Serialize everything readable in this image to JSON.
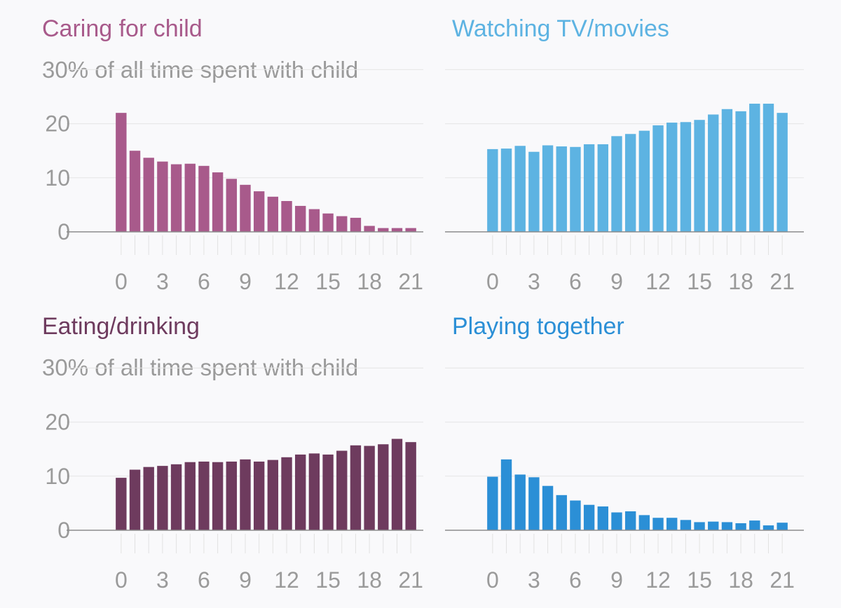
{
  "chart_data": [
    {
      "type": "bar",
      "title": "Caring for child",
      "subtitle": "30% of all time spent with child",
      "color": "#a85a8b",
      "x": [
        0,
        1,
        2,
        3,
        4,
        5,
        6,
        7,
        8,
        9,
        10,
        11,
        12,
        13,
        14,
        15,
        16,
        17,
        18,
        19,
        20,
        21
      ],
      "values": [
        22,
        15,
        13.7,
        13,
        12.5,
        12.6,
        12.2,
        11,
        9.8,
        8.7,
        7.5,
        6.5,
        5.7,
        4.8,
        4.2,
        3.4,
        2.9,
        2.6,
        1.1,
        0.7,
        0.7,
        0.7
      ],
      "xticks": [
        "0",
        "3",
        "6",
        "9",
        "12",
        "15",
        "18",
        "21"
      ],
      "yticks": [
        "0",
        "10",
        "20"
      ],
      "ylim": [
        0,
        30
      ]
    },
    {
      "type": "bar",
      "title": "Watching TV/movies",
      "subtitle": "",
      "color": "#5db3e2",
      "x": [
        0,
        1,
        2,
        3,
        4,
        5,
        6,
        7,
        8,
        9,
        10,
        11,
        12,
        13,
        14,
        15,
        16,
        17,
        18,
        19,
        20,
        21
      ],
      "values": [
        15.3,
        15.4,
        15.9,
        14.8,
        16,
        15.8,
        15.7,
        16.2,
        16.2,
        17.7,
        18.1,
        18.7,
        19.7,
        20.2,
        20.3,
        20.7,
        21.7,
        22.7,
        22.3,
        23.7,
        23.7,
        22
      ],
      "xticks": [
        "0",
        "3",
        "6",
        "9",
        "12",
        "15",
        "18",
        "21"
      ],
      "yticks": [],
      "ylim": [
        0,
        30
      ]
    },
    {
      "type": "bar",
      "title": "Eating/drinking",
      "subtitle": "30% of all time spent with child",
      "color": "#6e3b5e",
      "x": [
        0,
        1,
        2,
        3,
        4,
        5,
        6,
        7,
        8,
        9,
        10,
        11,
        12,
        13,
        14,
        15,
        16,
        17,
        18,
        19,
        20,
        21
      ],
      "values": [
        9.7,
        11.2,
        11.7,
        11.9,
        12.2,
        12.6,
        12.7,
        12.6,
        12.7,
        13.1,
        12.7,
        13,
        13.5,
        14,
        14.2,
        14,
        14.7,
        15.7,
        15.6,
        15.9,
        16.9,
        16.3
      ],
      "xticks": [
        "0",
        "3",
        "6",
        "9",
        "12",
        "15",
        "18",
        "21"
      ],
      "yticks": [
        "0",
        "10",
        "20"
      ],
      "ylim": [
        0,
        30
      ]
    },
    {
      "type": "bar",
      "title": "Playing together",
      "subtitle": "",
      "color": "#2b8fd6",
      "x": [
        0,
        1,
        2,
        3,
        4,
        5,
        6,
        7,
        8,
        9,
        10,
        11,
        12,
        13,
        14,
        15,
        16,
        17,
        18,
        19,
        20,
        21
      ],
      "values": [
        9.9,
        13.1,
        10.3,
        9.8,
        8.2,
        6.5,
        5.5,
        4.7,
        4.4,
        3.3,
        3.5,
        2.8,
        2.3,
        2.3,
        1.9,
        1.5,
        1.6,
        1.5,
        1.3,
        1.8,
        0.9,
        1.4
      ],
      "xticks": [
        "0",
        "3",
        "6",
        "9",
        "12",
        "15",
        "18",
        "21"
      ],
      "yticks": [],
      "ylim": [
        0,
        30
      ]
    }
  ]
}
